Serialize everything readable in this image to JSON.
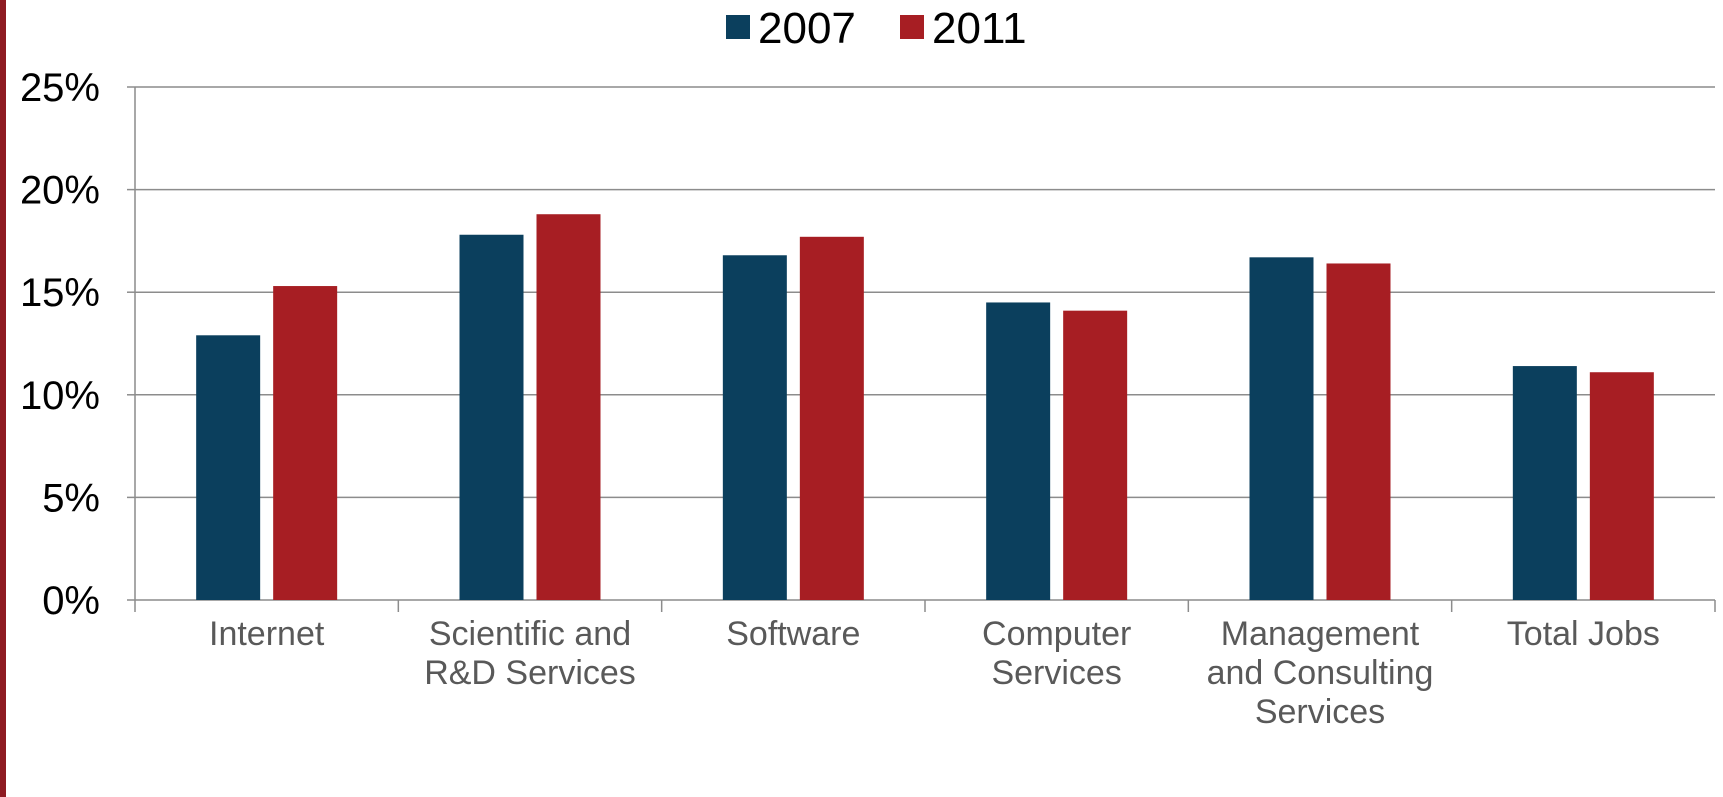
{
  "chart_data": {
    "type": "bar",
    "categories": [
      [
        "Internet"
      ],
      [
        "Scientific and",
        "R&D Services"
      ],
      [
        "Software"
      ],
      [
        "Computer",
        "Services"
      ],
      [
        "Management",
        "and Consulting",
        "Services"
      ],
      [
        "Total Jobs"
      ]
    ],
    "series": [
      {
        "name": "2007",
        "color": "#0b3f5d",
        "values": [
          12.9,
          17.8,
          16.8,
          14.5,
          16.7,
          11.4
        ]
      },
      {
        "name": "2011",
        "color": "#a71e23",
        "values": [
          15.3,
          18.8,
          17.7,
          14.1,
          16.4,
          11.1
        ]
      }
    ],
    "ylim": [
      0,
      25
    ],
    "yticks": [
      0,
      5,
      10,
      15,
      20,
      25
    ],
    "ytick_labels": [
      "0%",
      "5%",
      "10%",
      "15%",
      "20%",
      "25%"
    ],
    "title": "",
    "xlabel": "",
    "ylabel": "",
    "grid": true,
    "legend_position": "top-center",
    "gridline_color": "#8c8c8c",
    "accent_color": "#8e1b22"
  }
}
